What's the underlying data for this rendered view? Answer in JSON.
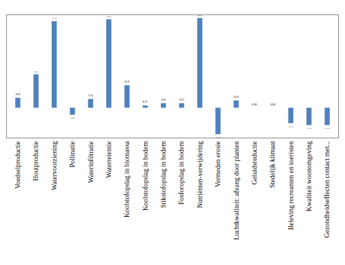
{
  "chart_data": {
    "type": "bar",
    "categories": [
      "Voedselproductie",
      "Houtproductie",
      "Watervoorziening",
      "Pollinatie",
      "Waterinfiltratie",
      "Waterretentie",
      "Koolstofopslag in biomassa",
      "Koolstofopslag in bodem",
      "Stikstofopslag in bodem",
      "Fosforopslag in bodem",
      "Nutriënten-verwijdering",
      "Vermeden erosie",
      "Luchtkwaliteit: afvang door planten",
      "Geluidsreductie",
      "Stedelijk klimaat",
      "Beleving recreanten en toeristen",
      "Kwaliteit woonomgeving",
      "Gezondheidseffecten contact met..."
    ],
    "values": [
      36.43,
      122.35,
      317.64,
      -25.82,
      32.16,
      324.66,
      82.79,
      8.31,
      16.63,
      16.32,
      329.07,
      -97.14,
      26.63,
      0.0,
      0.0,
      -56.76,
      -63.69,
      -63.69
    ],
    "value_labels": [
      "36,43",
      "122,35",
      "317,64",
      "-25,82",
      "32,16",
      "324,66",
      "82,79",
      "8,31",
      "16,63",
      "16,32",
      "329,07",
      "-97,14",
      "26,63",
      "0,00",
      "0,00",
      "-56,76",
      "-63,69",
      "-63,69"
    ],
    "color": "#4f81bd",
    "ylim": [
      -110,
      340
    ],
    "data_labels": true,
    "tick_labels": "x"
  }
}
